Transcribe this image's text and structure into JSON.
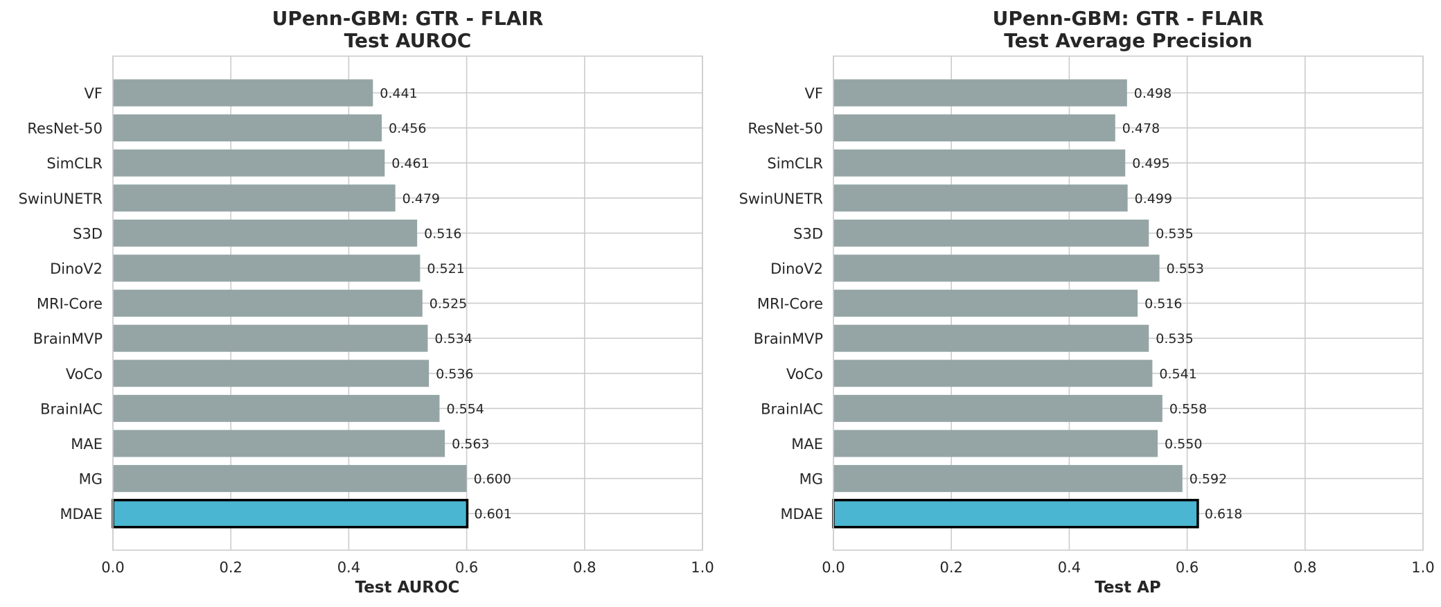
{
  "chart_data": [
    {
      "type": "bar",
      "orientation": "horizontal",
      "title_line1": "UPenn-GBM: GTR - FLAIR",
      "title_line2": "Test AUROC",
      "xlabel": "Test AUROC",
      "ylabel": "",
      "xlim": [
        0,
        1.0
      ],
      "xticks": [
        "0.0",
        "0.2",
        "0.4",
        "0.6",
        "0.8",
        "1.0"
      ],
      "xtick_values": [
        0,
        0.2,
        0.4,
        0.6,
        0.8,
        1.0
      ],
      "grid": true,
      "categories": [
        "VF",
        "ResNet-50",
        "SimCLR",
        "SwinUNETR",
        "S3D",
        "DinoV2",
        "MRI-Core",
        "BrainMVP",
        "VoCo",
        "BrainIAC",
        "MAE",
        "MG",
        "MDAE"
      ],
      "values": [
        0.441,
        0.456,
        0.461,
        0.479,
        0.516,
        0.521,
        0.525,
        0.534,
        0.536,
        0.554,
        0.563,
        0.6,
        0.601
      ],
      "labels": [
        "0.441",
        "0.456",
        "0.461",
        "0.479",
        "0.516",
        "0.521",
        "0.525",
        "0.534",
        "0.536",
        "0.554",
        "0.563",
        "0.600",
        "0.601"
      ],
      "highlight": "MDAE",
      "bar_color": "#95a5a6",
      "highlight_color": "#4ab6d1"
    },
    {
      "type": "bar",
      "orientation": "horizontal",
      "title_line1": "UPenn-GBM: GTR - FLAIR",
      "title_line2": "Test Average Precision",
      "xlabel": "Test AP",
      "ylabel": "",
      "xlim": [
        0,
        1.0
      ],
      "xticks": [
        "0.0",
        "0.2",
        "0.4",
        "0.6",
        "0.8",
        "1.0"
      ],
      "xtick_values": [
        0,
        0.2,
        0.4,
        0.6,
        0.8,
        1.0
      ],
      "grid": true,
      "categories": [
        "VF",
        "ResNet-50",
        "SimCLR",
        "SwinUNETR",
        "S3D",
        "DinoV2",
        "MRI-Core",
        "BrainMVP",
        "VoCo",
        "BrainIAC",
        "MAE",
        "MG",
        "MDAE"
      ],
      "values": [
        0.498,
        0.478,
        0.495,
        0.499,
        0.535,
        0.553,
        0.516,
        0.535,
        0.541,
        0.558,
        0.55,
        0.592,
        0.618
      ],
      "labels": [
        "0.498",
        "0.478",
        "0.495",
        "0.499",
        "0.535",
        "0.553",
        "0.516",
        "0.535",
        "0.541",
        "0.558",
        "0.550",
        "0.592",
        "0.618"
      ],
      "highlight": "MDAE",
      "bar_color": "#95a5a6",
      "highlight_color": "#4ab6d1"
    }
  ]
}
